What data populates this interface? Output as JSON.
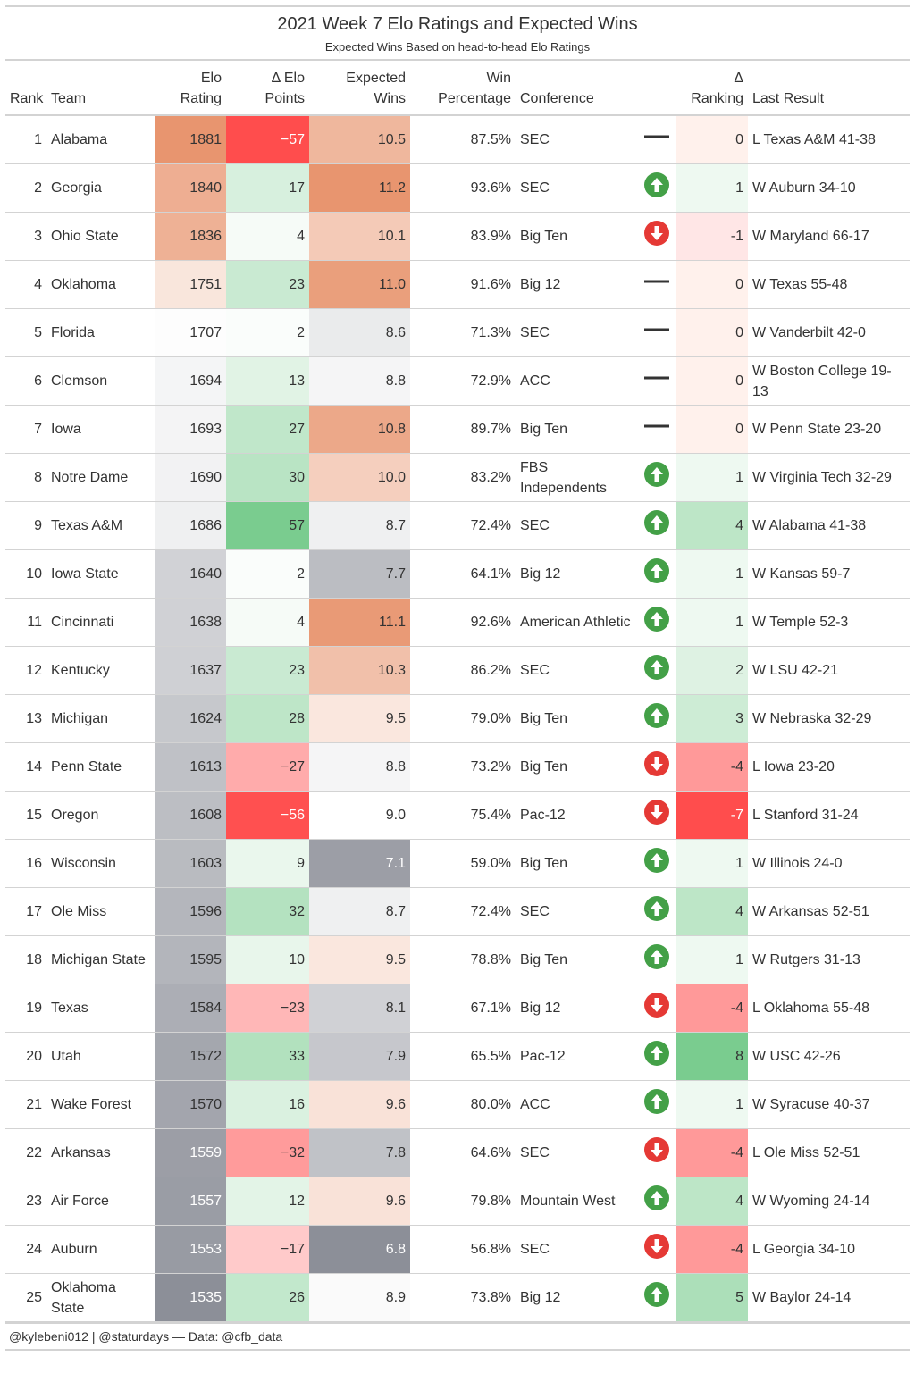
{
  "header": {
    "title": "2021 Week 7 Elo Ratings and Expected Wins",
    "subtitle": "Expected Wins Based on head-to-head Elo Ratings"
  },
  "table": {
    "columns": [
      [
        "Rank"
      ],
      [
        "Team"
      ],
      [
        "Elo",
        "Rating"
      ],
      [
        "Δ Elo",
        "Points"
      ],
      [
        "Expected",
        "Wins"
      ],
      [
        "Win",
        "Percentage"
      ],
      [
        "Conference"
      ],
      [
        "Δ",
        "Ranking"
      ],
      [
        "Last Result"
      ]
    ],
    "rows": [
      [
        "1",
        "Alabama",
        "1881",
        "−57",
        "10.5",
        "87.5%",
        "SEC",
        "0",
        "L Texas A&M 41-38"
      ],
      [
        "2",
        "Georgia",
        "1840",
        "17",
        "11.2",
        "93.6%",
        "SEC",
        "1",
        "W Auburn 34-10"
      ],
      [
        "3",
        "Ohio State",
        "1836",
        "4",
        "10.1",
        "83.9%",
        "Big Ten",
        "-1",
        "W Maryland 66-17"
      ],
      [
        "4",
        "Oklahoma",
        "1751",
        "23",
        "11.0",
        "91.6%",
        "Big 12",
        "0",
        "W Texas 55-48"
      ],
      [
        "5",
        "Florida",
        "1707",
        "2",
        "8.6",
        "71.3%",
        "SEC",
        "0",
        "W Vanderbilt 42-0"
      ],
      [
        "6",
        "Clemson",
        "1694",
        "13",
        "8.8",
        "72.9%",
        "ACC",
        "0",
        "W Boston College 19-13"
      ],
      [
        "7",
        "Iowa",
        "1693",
        "27",
        "10.8",
        "89.7%",
        "Big Ten",
        "0",
        "W Penn State 23-20"
      ],
      [
        "8",
        "Notre Dame",
        "1690",
        "30",
        "10.0",
        "83.2%",
        "FBS Independents",
        "1",
        "W Virginia Tech 32-29"
      ],
      [
        "9",
        "Texas A&M",
        "1686",
        "57",
        "8.7",
        "72.4%",
        "SEC",
        "4",
        "W Alabama 41-38"
      ],
      [
        "10",
        "Iowa State",
        "1640",
        "2",
        "7.7",
        "64.1%",
        "Big 12",
        "1",
        "W Kansas 59-7"
      ],
      [
        "11",
        "Cincinnati",
        "1638",
        "4",
        "11.1",
        "92.6%",
        "American Athletic",
        "1",
        "W Temple 52-3"
      ],
      [
        "12",
        "Kentucky",
        "1637",
        "23",
        "10.3",
        "86.2%",
        "SEC",
        "2",
        "W LSU 42-21"
      ],
      [
        "13",
        "Michigan",
        "1624",
        "28",
        "9.5",
        "79.0%",
        "Big Ten",
        "3",
        "W Nebraska 32-29"
      ],
      [
        "14",
        "Penn State",
        "1613",
        "−27",
        "8.8",
        "73.2%",
        "Big Ten",
        "-4",
        "L Iowa 23-20"
      ],
      [
        "15",
        "Oregon",
        "1608",
        "−56",
        "9.0",
        "75.4%",
        "Pac-12",
        "-7",
        "L Stanford 31-24"
      ],
      [
        "16",
        "Wisconsin",
        "1603",
        "9",
        "7.1",
        "59.0%",
        "Big Ten",
        "1",
        "W Illinois 24-0"
      ],
      [
        "17",
        "Ole Miss",
        "1596",
        "32",
        "8.7",
        "72.4%",
        "SEC",
        "4",
        "W Arkansas 52-51"
      ],
      [
        "18",
        "Michigan State",
        "1595",
        "10",
        "9.5",
        "78.8%",
        "Big Ten",
        "1",
        "W Rutgers 31-13"
      ],
      [
        "19",
        "Texas",
        "1584",
        "−23",
        "8.1",
        "67.1%",
        "Big 12",
        "-4",
        "L Oklahoma 55-48"
      ],
      [
        "20",
        "Utah",
        "1572",
        "33",
        "7.9",
        "65.5%",
        "Pac-12",
        "8",
        "W USC 42-26"
      ],
      [
        "21",
        "Wake Forest",
        "1570",
        "16",
        "9.6",
        "80.0%",
        "ACC",
        "1",
        "W Syracuse 40-37"
      ],
      [
        "22",
        "Arkansas",
        "1559",
        "−32",
        "7.8",
        "64.6%",
        "SEC",
        "-4",
        "L Ole Miss 52-51"
      ],
      [
        "23",
        "Air Force",
        "1557",
        "12",
        "9.6",
        "79.8%",
        "Mountain West",
        "4",
        "W Wyoming 24-14"
      ],
      [
        "24",
        "Auburn",
        "1553",
        "−17",
        "6.8",
        "56.8%",
        "SEC",
        "-4",
        "L Georgia 34-10"
      ],
      [
        "25",
        "Oklahoma State",
        "1535",
        "26",
        "8.9",
        "73.8%",
        "Big 12",
        "5",
        "W Baylor 24-14"
      ]
    ]
  },
  "footer": "@kylebeni012 | @staturdays — Data: @cfb_data"
}
